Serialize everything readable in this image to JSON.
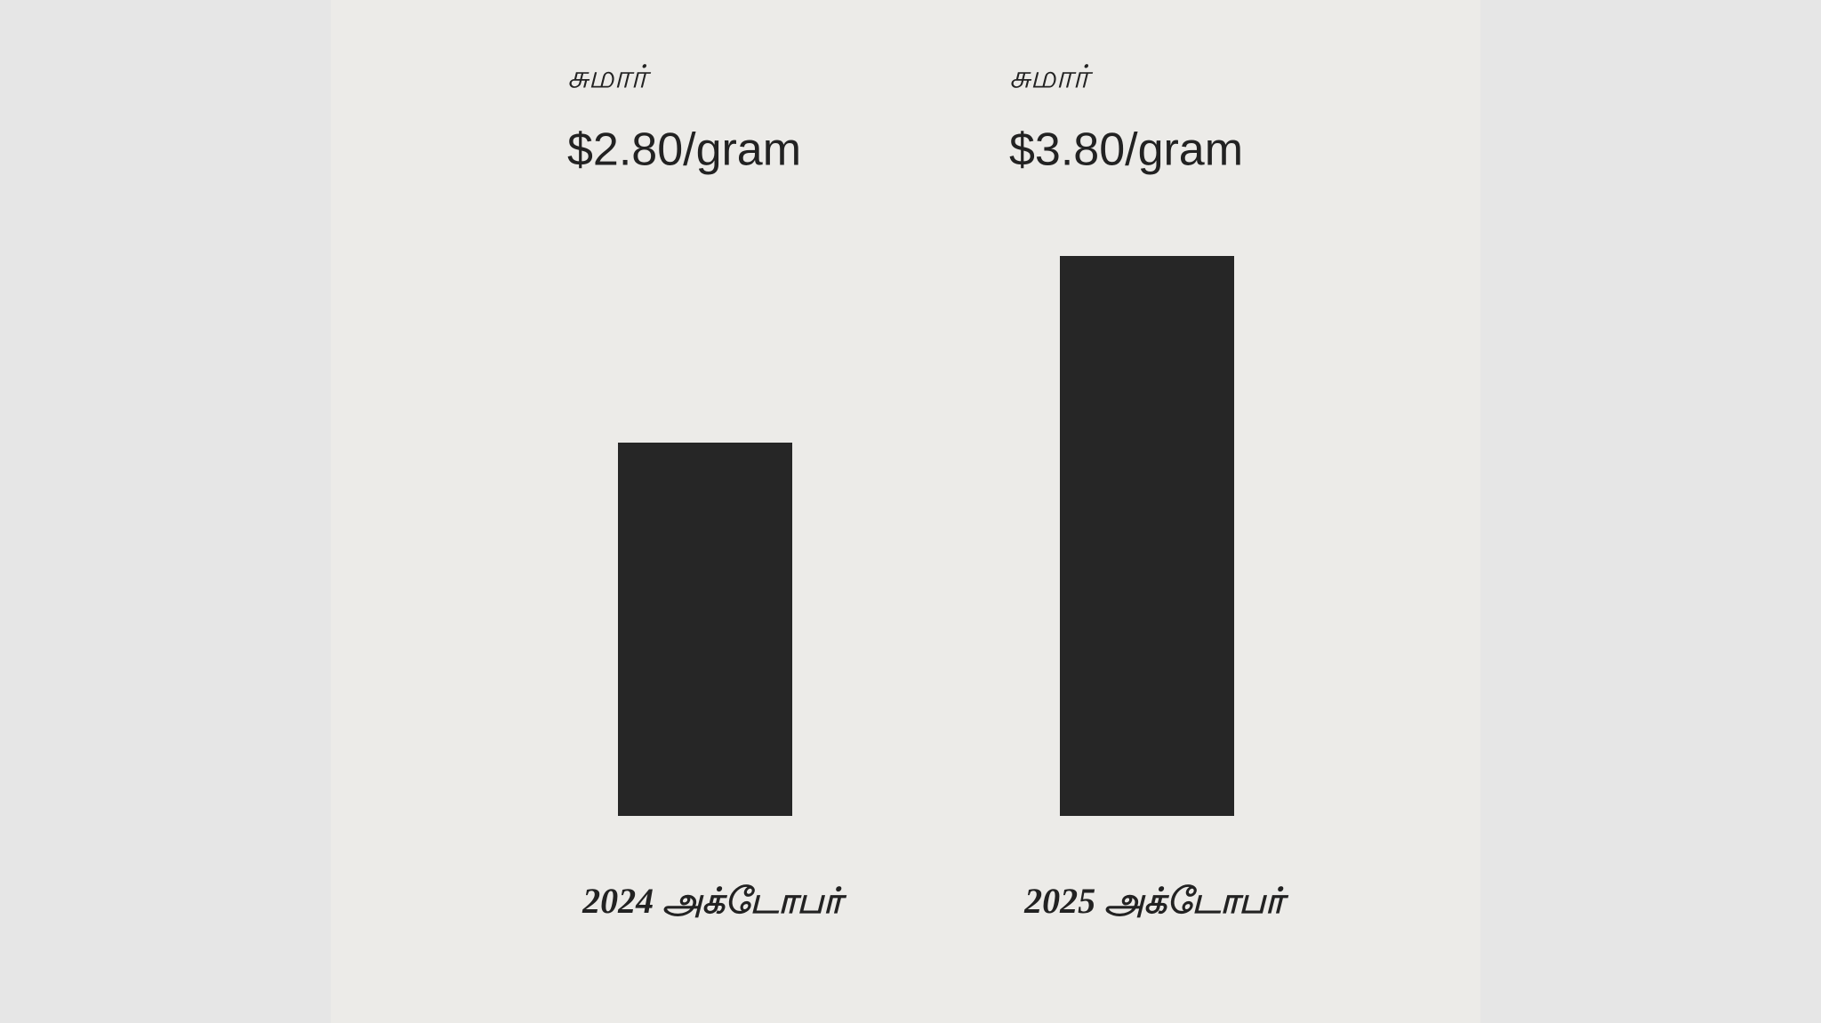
{
  "chart_data": {
    "type": "bar",
    "categories": [
      "2024 அக்டோபர்",
      "2025 அக்டோபர்"
    ],
    "values": [
      2.8,
      3.8
    ],
    "value_labels": [
      "$2.80/gram",
      "$3.80/gram"
    ],
    "annotations": [
      "சுமார்",
      "சுமார்"
    ],
    "color": "#262626",
    "ylim": [
      0.8,
      4.5
    ]
  }
}
